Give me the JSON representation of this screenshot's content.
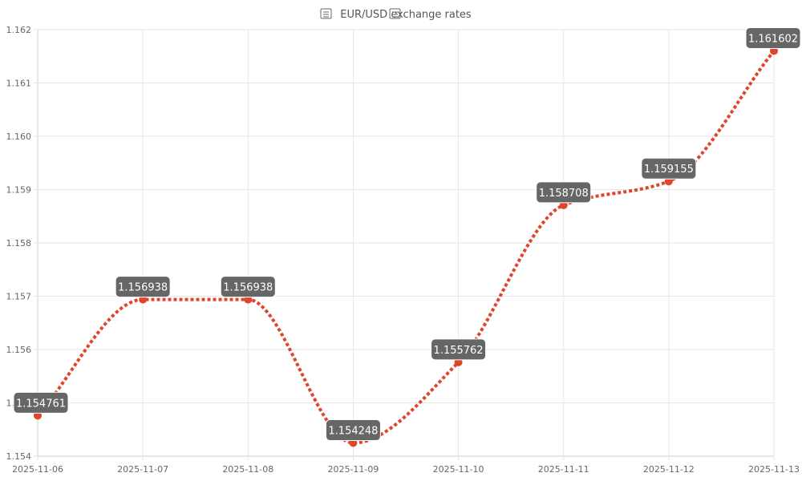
{
  "chart_data": {
    "type": "line",
    "title": "EUR/USD exchange rates",
    "title_icons": [
      "eu-flag-icon",
      "us-flag-icon"
    ],
    "x": [
      "2025-11-06",
      "2025-11-07",
      "2025-11-08",
      "2025-11-09",
      "2025-11-10",
      "2025-11-11",
      "2025-11-12",
      "2025-11-13"
    ],
    "series": [
      {
        "values": [
          1.154761,
          1.156938,
          1.156938,
          1.154248,
          1.155762,
          1.158708,
          1.159155,
          1.161602
        ]
      }
    ],
    "data_labels": [
      "1.154761",
      "1.156938",
      "1.156938",
      "1.154248",
      "1.155762",
      "1.158708",
      "1.159155",
      "1.161602"
    ],
    "y_ticks": [
      "1.154",
      "1.155",
      "1.156",
      "1.157",
      "1.158",
      "1.159",
      "1.160",
      "1.161",
      "1.162"
    ],
    "ylim": [
      1.154,
      1.162
    ],
    "grid": true,
    "line_style": "dotted",
    "colors": {
      "line": "#e0442a",
      "point": "#e0442a",
      "label_bg": "#666666",
      "label_border": "#ffffff",
      "label_text": "#ffffff",
      "grid": "#e6e6e6",
      "text": "#555555"
    }
  }
}
